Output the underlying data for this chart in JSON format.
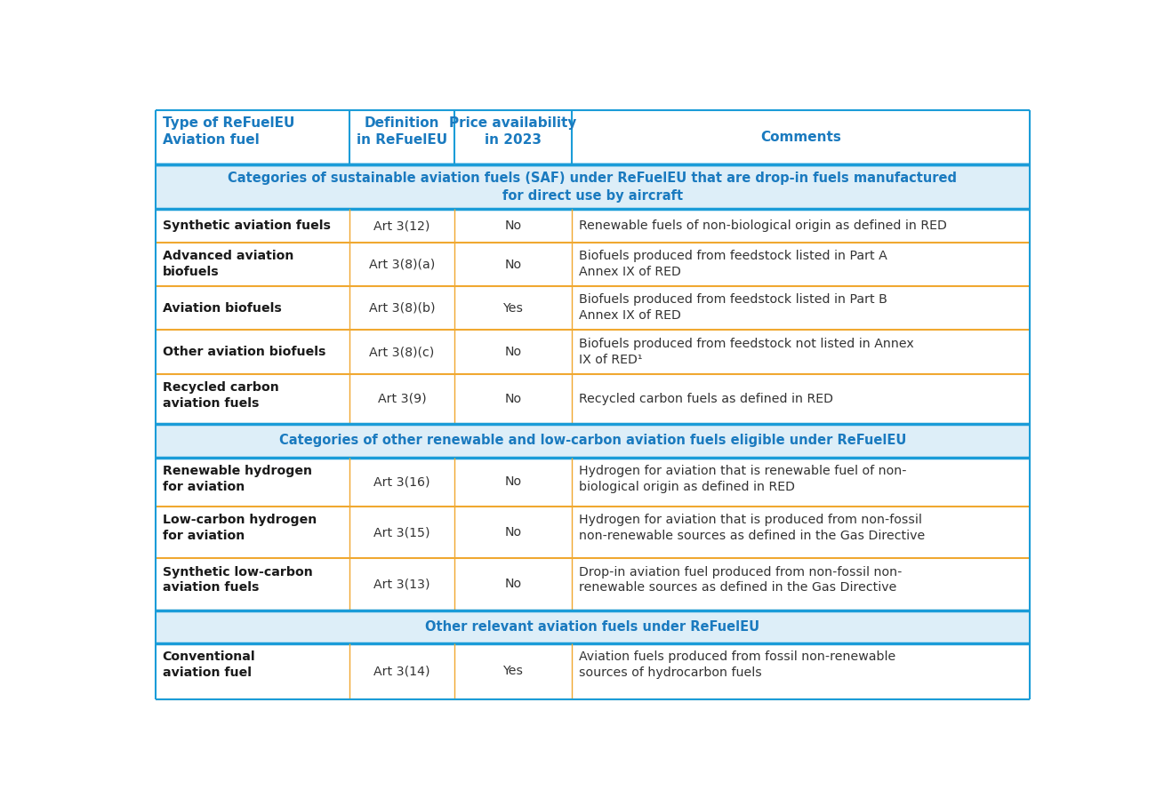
{
  "bg_color": "#ffffff",
  "category_bg": "#ddeef8",
  "category_text_color": "#1a7abf",
  "header_text_color": "#1a7abf",
  "border_color_thick": "#1a9cd8",
  "border_color_thin": "#f0a830",
  "headers": [
    "Type of ReFuelEU\nAviation fuel",
    "Definition\nin ReFuelEU",
    "Price availability\nin 2023",
    "Comments"
  ],
  "categories": [
    {
      "text": "Categories of sustainable aviation fuels (SAF) under ReFuelEU that are drop-in fuels manufactured\nfor direct use by aircraft",
      "rows": [
        {
          "col0": "Synthetic aviation fuels",
          "col1": "Art 3(12)",
          "col2": "No",
          "col3": "Renewable fuels of non-biological origin as defined in RED"
        },
        {
          "col0": "Advanced aviation\nbiofuels",
          "col1": "Art 3(8)(a)",
          "col2": "No",
          "col3": "Biofuels produced from feedstock listed in Part A\nAnnex IX of RED"
        },
        {
          "col0": "Aviation biofuels",
          "col1": "Art 3(8)(b)",
          "col2": "Yes",
          "col3": "Biofuels produced from feedstock listed in Part B\nAnnex IX of RED"
        },
        {
          "col0": "Other aviation biofuels",
          "col1": "Art 3(8)(c)",
          "col2": "No",
          "col3": "Biofuels produced from feedstock not listed in Annex\nIX of RED¹"
        },
        {
          "col0": "Recycled carbon\naviation fuels",
          "col1": "Art 3(9)",
          "col2": "No",
          "col3": "Recycled carbon fuels as defined in RED"
        }
      ]
    },
    {
      "text": "Categories of other renewable and low-carbon aviation fuels eligible under ReFuelEU",
      "rows": [
        {
          "col0": "Renewable hydrogen\nfor aviation",
          "col1": "Art 3(16)",
          "col2": "No",
          "col3": "Hydrogen for aviation that is renewable fuel of non-\nbiological origin as defined in RED"
        },
        {
          "col0": "Low-carbon hydrogen\nfor aviation",
          "col1": "Art 3(15)",
          "col2": "No",
          "col3": "Hydrogen for aviation that is produced from non-fossil\nnon-renewable sources as defined in the Gas Directive"
        },
        {
          "col0": "Synthetic low-carbon\naviation fuels",
          "col1": "Art 3(13)",
          "col2": "No",
          "col3": "Drop-in aviation fuel produced from non-fossil non-\nrenewable sources as defined in the Gas Directive"
        }
      ]
    },
    {
      "text": "Other relevant aviation fuels under ReFuelEU",
      "rows": [
        {
          "col0": "Conventional\naviation fuel",
          "col1": "Art 3(14)",
          "col2": "Yes",
          "col3": "Aviation fuels produced from fossil non-renewable\nsources of hydrocarbon fuels"
        }
      ]
    }
  ]
}
